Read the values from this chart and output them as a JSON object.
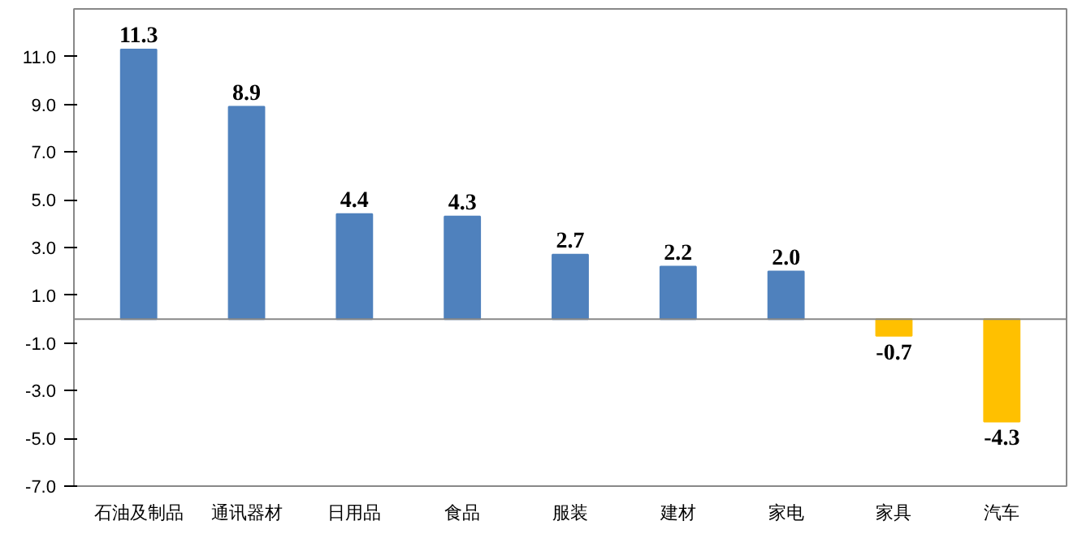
{
  "chart_data": {
    "type": "bar",
    "categories": [
      "石油及制品",
      "通讯器材",
      "日用品",
      "食品",
      "服装",
      "建材",
      "家电",
      "家具",
      "汽车"
    ],
    "values": [
      11.3,
      8.9,
      4.4,
      4.3,
      2.7,
      2.2,
      2.0,
      -0.7,
      -4.3
    ],
    "colors": [
      "#4f81bd",
      "#4f81bd",
      "#4f81bd",
      "#4f81bd",
      "#4f81bd",
      "#4f81bd",
      "#4f81bd",
      "#ffc000",
      "#ffc000"
    ],
    "ylim": [
      -7.0,
      13.0
    ],
    "yticks": [
      {
        "value": -7,
        "label": "-7.0"
      },
      {
        "value": -5,
        "label": "-5.0"
      },
      {
        "value": -3,
        "label": "-3.0"
      },
      {
        "value": -1,
        "label": "-1.0"
      },
      {
        "value": 1,
        "label": "1.0"
      },
      {
        "value": 3,
        "label": "3.0"
      },
      {
        "value": 5,
        "label": "5.0"
      },
      {
        "value": 7,
        "label": "7.0"
      },
      {
        "value": 9,
        "label": "9.0"
      },
      {
        "value": 11,
        "label": "11.0"
      }
    ],
    "value_labels": [
      "11.3",
      "8.9",
      "4.4",
      "4.3",
      "2.7",
      "2.2",
      "2.0",
      "-0.7",
      "-4.3"
    ]
  }
}
